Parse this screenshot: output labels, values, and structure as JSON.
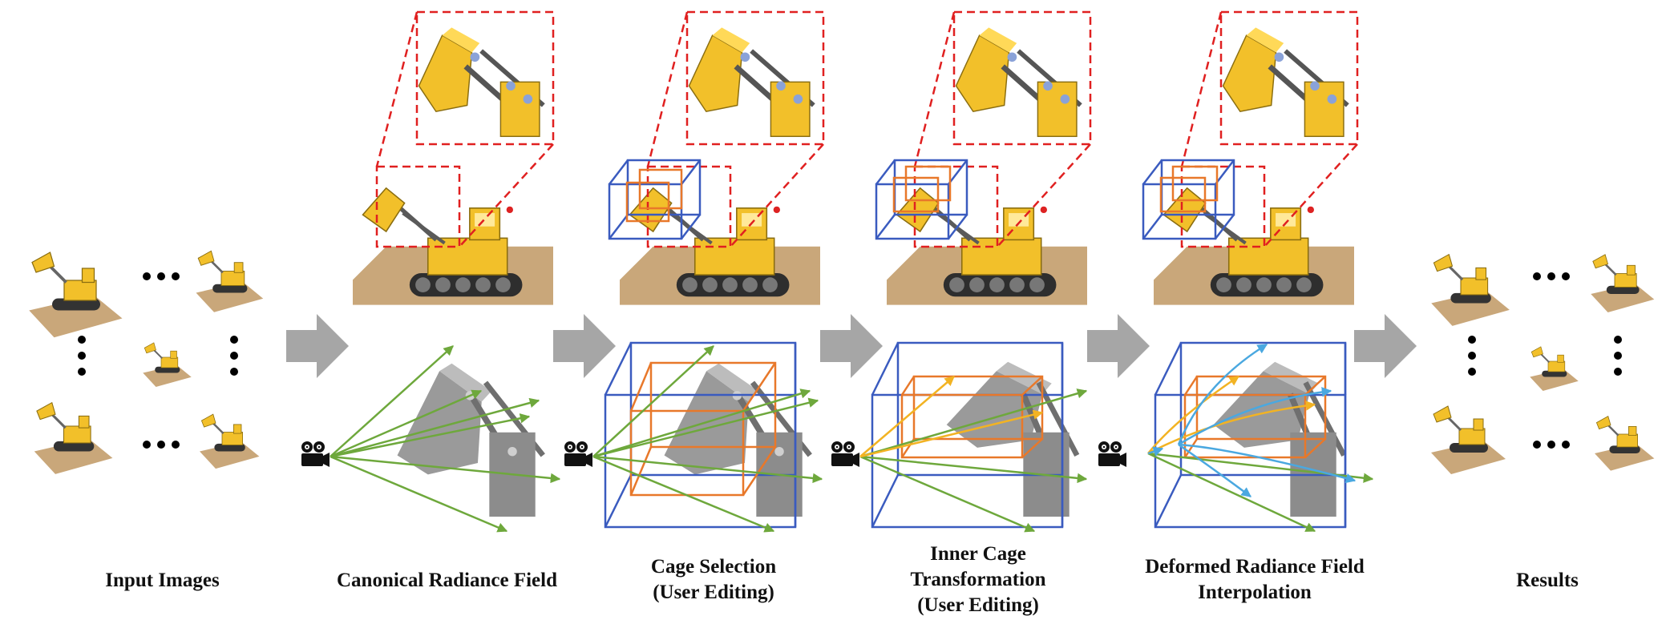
{
  "stages": [
    {
      "id": "input",
      "caption_lines": [
        "Input Images"
      ]
    },
    {
      "id": "canonical",
      "caption_lines": [
        "Canonical Radiance Field"
      ]
    },
    {
      "id": "cage-selection",
      "caption_lines": [
        "Cage Selection",
        "(User Editing)"
      ]
    },
    {
      "id": "inner-cage",
      "caption_lines": [
        "Inner Cage",
        "Transformation",
        "(User Editing)"
      ]
    },
    {
      "id": "deformed",
      "caption_lines": [
        "Deformed Radiance Field",
        "Interpolation"
      ]
    },
    {
      "id": "results",
      "caption_lines": [
        "Results"
      ]
    }
  ],
  "colors": {
    "zoom_box": "#e02020",
    "outer_cage": "#3a5bbf",
    "inner_cage": "#e8782a",
    "ray": "#6ea83c",
    "deformed_ray_inner": "#f2b323",
    "deformed_ray_outer": "#4aa8e0",
    "stage_arrow": "#a6a6a6",
    "bulldozer": "#f2c02a",
    "base_plate": "#c9a77a"
  },
  "icons": [
    "camera-icon",
    "ellipsis-icon",
    "stage-arrow-icon"
  ]
}
